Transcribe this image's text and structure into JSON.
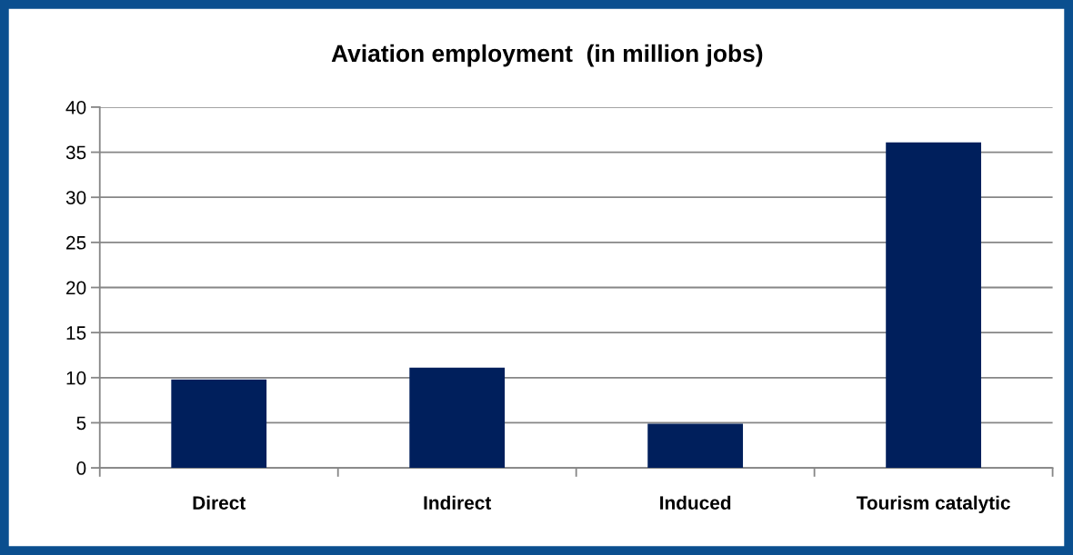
{
  "chart_data": {
    "type": "bar",
    "title": "Aviation employment  (in million jobs)",
    "categories": [
      "Direct",
      "Indirect",
      "Induced",
      "Tourism catalytic"
    ],
    "values": [
      9.8,
      11.1,
      4.9,
      36.1
    ],
    "color": "#001f5c",
    "ylim": [
      0,
      40
    ],
    "yticks": [
      0,
      5,
      10,
      15,
      20,
      25,
      30,
      35,
      40
    ],
    "grid": "y"
  }
}
